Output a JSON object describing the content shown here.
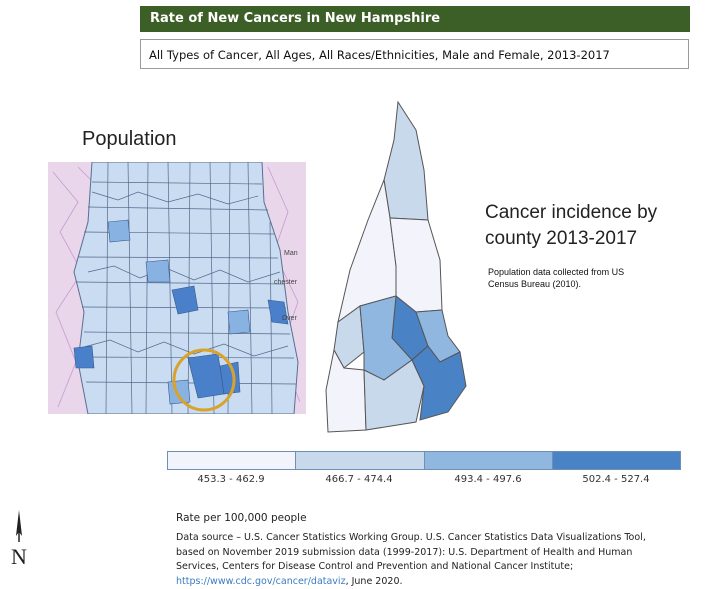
{
  "header": {
    "title": "Rate of New Cancers in New Hampshire",
    "subtitle": "All Types of Cancer, All Ages, All Races/Ethnicities, Male and Female, 2013-2017",
    "title_bar_color": "#3c5e27"
  },
  "population_map": {
    "heading": "Population",
    "place_labels": [
      "Man",
      "chester",
      "Dver"
    ]
  },
  "incidence_map": {
    "heading_line1": "Cancer incidence by",
    "heading_line2": "county 2013-2017",
    "note": "Population data collected from US Census Bureau (2010)."
  },
  "legend": {
    "classes": [
      {
        "label": "453.3 - 462.9",
        "color": "#f3f4fb"
      },
      {
        "label": "466.7 - 474.4",
        "color": "#c9d9ec"
      },
      {
        "label": "493.4 - 497.6",
        "color": "#8fb7e0"
      },
      {
        "label": "502.4 - 527.4",
        "color": "#4a82c6"
      }
    ]
  },
  "footer": {
    "rate_label": "Rate per 100,000 people",
    "data_source_text": "Data source – U.S. Cancer Statistics Working Group. U.S. Cancer Statistics Data Visualizations Tool, based on November 2019 submission data (1999-2017): U.S. Department of Health and Human Services, Centers for Disease Control and Prevention and National Cancer Institute; ",
    "link_text": "https://www.cdc.gov/cancer/dataviz",
    "date_text": ", June 2020."
  },
  "north_arrow": {
    "letter": "N"
  }
}
